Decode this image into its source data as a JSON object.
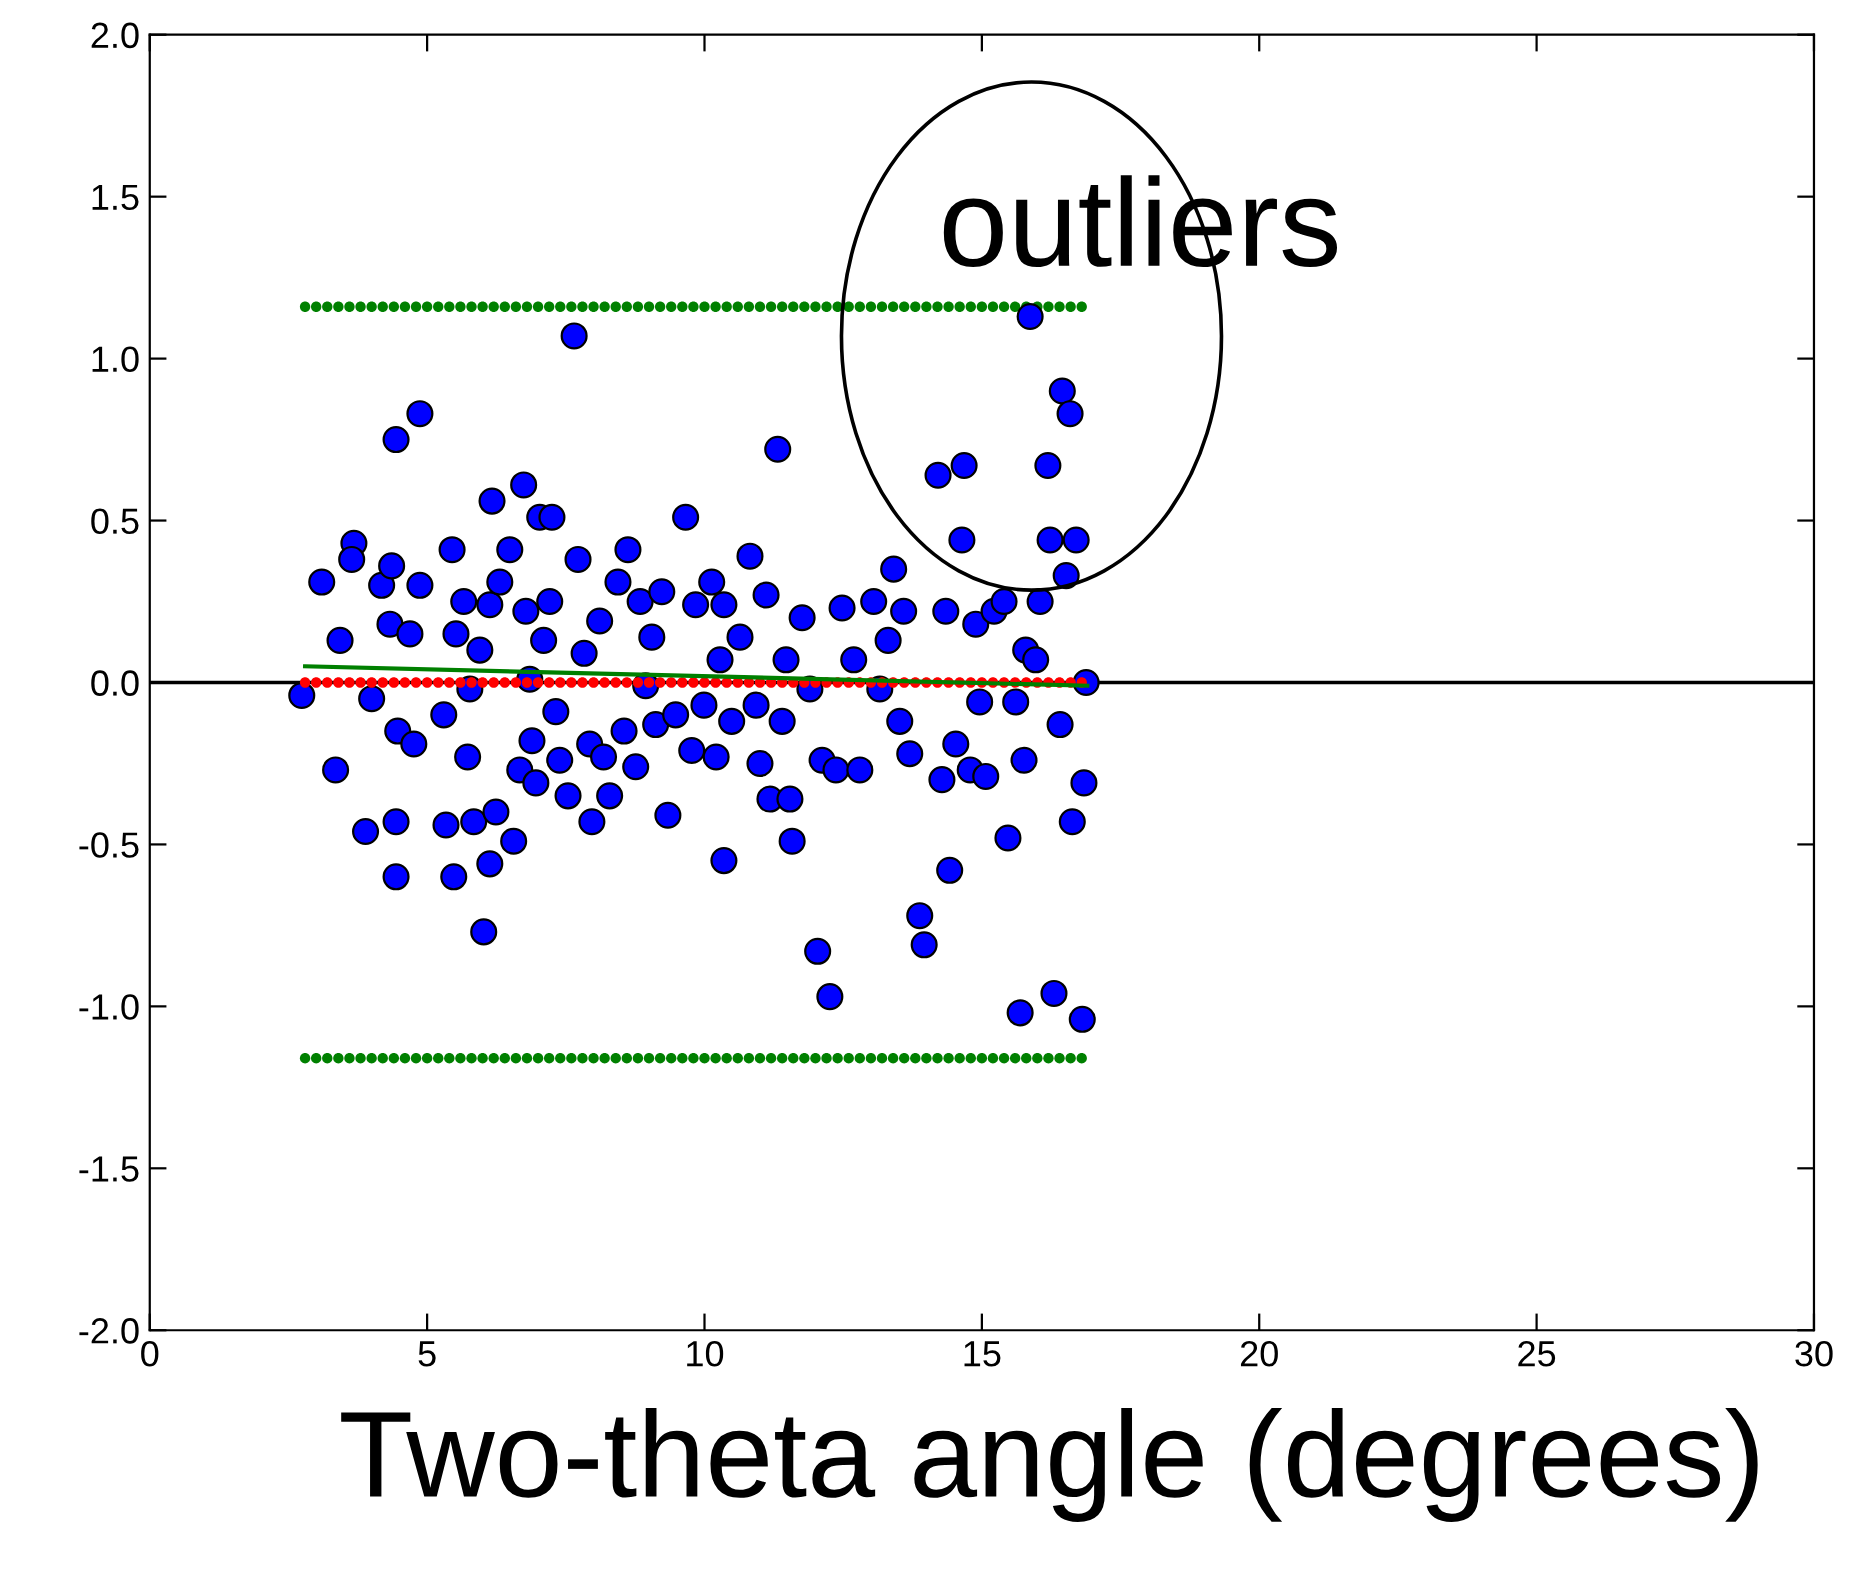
{
  "chart_data": {
    "type": "scatter",
    "xlabel": "Two-theta angle (degrees)",
    "xlim": [
      0,
      30
    ],
    "xticks": [
      0,
      5,
      10,
      15,
      20,
      25,
      30
    ],
    "ylim": [
      -2.0,
      2.0
    ],
    "yticks": [
      {
        "value": -2.0,
        "label": "-2.0"
      },
      {
        "value": -1.5,
        "label": "-1.5"
      },
      {
        "value": -1.0,
        "label": "-1.0"
      },
      {
        "value": -0.5,
        "label": "-0.5"
      },
      {
        "value": 0.0,
        "label": "0.0"
      },
      {
        "value": 0.5,
        "label": "0.5"
      },
      {
        "value": 1.0,
        "label": "1.0"
      },
      {
        "value": 1.5,
        "label": "1.5"
      },
      {
        "value": 2.0,
        "label": "2.0"
      }
    ],
    "grid": false,
    "legend": false,
    "marker": "circle",
    "ref_lines": [
      {
        "axis": "y",
        "value": 0,
        "color": "#000000"
      }
    ],
    "annotations": [
      "outliers"
    ],
    "series": [
      {
        "type": "scatter",
        "color": "#008000",
        "x": [
          2.8,
          3.0,
          3.2,
          3.4,
          3.6,
          3.8,
          4.0,
          4.2,
          4.4,
          4.6,
          4.8,
          5.0,
          5.2,
          5.4,
          5.6,
          5.8,
          6.0,
          6.2,
          6.4,
          6.6,
          6.8,
          7.0,
          7.2,
          7.4,
          7.6,
          7.8,
          8.0,
          8.2,
          8.4,
          8.6,
          8.8,
          9.0,
          9.2,
          9.4,
          9.6,
          9.8,
          10.0,
          10.2,
          10.4,
          10.6,
          10.8,
          11.0,
          11.2,
          11.4,
          11.6,
          11.8,
          12.0,
          12.2,
          12.4,
          12.6,
          12.8,
          13.0,
          13.2,
          13.4,
          13.6,
          13.8,
          14.0,
          14.2,
          14.4,
          14.6,
          14.8,
          15.0,
          15.2,
          15.4,
          15.6,
          15.8,
          16.0,
          16.2,
          16.4,
          16.6,
          16.8
        ],
        "values": [
          1.16,
          1.16,
          1.16,
          1.16,
          1.16,
          1.16,
          1.16,
          1.16,
          1.16,
          1.16,
          1.16,
          1.16,
          1.16,
          1.16,
          1.16,
          1.16,
          1.16,
          1.16,
          1.16,
          1.16,
          1.16,
          1.16,
          1.16,
          1.16,
          1.16,
          1.16,
          1.16,
          1.16,
          1.16,
          1.16,
          1.16,
          1.16,
          1.16,
          1.16,
          1.16,
          1.16,
          1.16,
          1.16,
          1.16,
          1.16,
          1.16,
          1.16,
          1.16,
          1.16,
          1.16,
          1.16,
          1.16,
          1.16,
          1.16,
          1.16,
          1.16,
          1.16,
          1.16,
          1.16,
          1.16,
          1.16,
          1.16,
          1.16,
          1.16,
          1.16,
          1.16,
          1.16,
          1.16,
          1.16,
          1.16,
          1.16,
          1.16,
          1.16,
          1.16,
          1.16,
          1.16
        ]
      },
      {
        "type": "scatter",
        "color": "#008000",
        "x": [
          2.8,
          3.0,
          3.2,
          3.4,
          3.6,
          3.8,
          4.0,
          4.2,
          4.4,
          4.6,
          4.8,
          5.0,
          5.2,
          5.4,
          5.6,
          5.8,
          6.0,
          6.2,
          6.4,
          6.6,
          6.8,
          7.0,
          7.2,
          7.4,
          7.6,
          7.8,
          8.0,
          8.2,
          8.4,
          8.6,
          8.8,
          9.0,
          9.2,
          9.4,
          9.6,
          9.8,
          10.0,
          10.2,
          10.4,
          10.6,
          10.8,
          11.0,
          11.2,
          11.4,
          11.6,
          11.8,
          12.0,
          12.2,
          12.4,
          12.6,
          12.8,
          13.0,
          13.2,
          13.4,
          13.6,
          13.8,
          14.0,
          14.2,
          14.4,
          14.6,
          14.8,
          15.0,
          15.2,
          15.4,
          15.6,
          15.8,
          16.0,
          16.2,
          16.4,
          16.6,
          16.8
        ],
        "values": [
          -1.16,
          -1.16,
          -1.16,
          -1.16,
          -1.16,
          -1.16,
          -1.16,
          -1.16,
          -1.16,
          -1.16,
          -1.16,
          -1.16,
          -1.16,
          -1.16,
          -1.16,
          -1.16,
          -1.16,
          -1.16,
          -1.16,
          -1.16,
          -1.16,
          -1.16,
          -1.16,
          -1.16,
          -1.16,
          -1.16,
          -1.16,
          -1.16,
          -1.16,
          -1.16,
          -1.16,
          -1.16,
          -1.16,
          -1.16,
          -1.16,
          -1.16,
          -1.16,
          -1.16,
          -1.16,
          -1.16,
          -1.16,
          -1.16,
          -1.16,
          -1.16,
          -1.16,
          -1.16,
          -1.16,
          -1.16,
          -1.16,
          -1.16,
          -1.16,
          -1.16,
          -1.16,
          -1.16,
          -1.16,
          -1.16,
          -1.16,
          -1.16,
          -1.16,
          -1.16,
          -1.16,
          -1.16,
          -1.16,
          -1.16,
          -1.16,
          -1.16,
          -1.16,
          -1.16,
          -1.16,
          -1.16,
          -1.16
        ]
      },
      {
        "color": "#0000ff",
        "x": [
          2.74,
          3.1,
          3.35,
          3.43,
          3.68,
          3.64,
          3.89,
          4.0,
          4.18,
          4.36,
          4.44,
          4.44,
          4.44,
          4.33,
          4.47,
          4.69,
          4.76,
          4.87,
          4.87,
          5.3,
          5.34,
          5.45,
          5.48,
          5.52,
          5.66,
          5.73,
          5.77,
          5.84,
          5.95,
          6.02,
          6.17,
          6.13,
          6.13,
          6.24,
          6.31,
          6.49,
          6.56,
          6.67,
          6.74,
          6.78,
          6.85,
          6.89,
          6.96,
          7.03,
          7.1,
          7.21,
          7.25,
          7.32,
          7.39,
          7.54,
          7.65,
          7.72,
          7.83,
          7.93,
          7.97,
          8.11,
          8.18,
          8.29,
          8.44,
          8.55,
          8.62,
          8.76,
          8.84,
          8.94,
          9.05,
          9.12,
          9.23,
          9.34,
          9.48,
          9.66,
          9.77,
          9.84,
          9.99,
          10.13,
          10.21,
          10.28,
          10.35,
          10.35,
          10.49,
          10.64,
          10.82,
          10.93,
          11.0,
          11.11,
          11.18,
          11.32,
          11.4,
          11.47,
          11.54,
          11.58,
          11.76,
          11.9,
          12.04,
          12.12,
          12.26,
          12.37,
          12.48,
          12.69,
          12.8,
          13.05,
          13.16,
          13.31,
          13.41,
          13.52,
          13.59,
          13.7,
          13.88,
          13.96,
          14.21,
          14.28,
          14.35,
          14.42,
          14.53,
          14.64,
          14.68,
          14.79,
          14.89,
          14.96,
          15.07,
          15.22,
          15.4,
          15.47,
          15.61,
          15.69,
          15.76,
          15.79,
          15.87,
          15.97,
          16.05,
          16.19,
          16.23,
          16.3,
          16.41,
          16.45,
          16.52,
          16.59,
          16.63,
          16.7,
          16.81,
          16.84,
          16.88
        ],
        "values": [
          -0.04,
          0.31,
          -0.27,
          0.13,
          0.43,
          0.38,
          -0.46,
          -0.05,
          0.3,
          0.36,
          0.75,
          -0.6,
          -0.43,
          0.18,
          -0.15,
          0.15,
          -0.19,
          0.83,
          0.3,
          -0.1,
          -0.44,
          0.41,
          -0.6,
          0.15,
          0.25,
          -0.23,
          -0.02,
          -0.43,
          0.1,
          -0.77,
          0.56,
          -0.56,
          0.24,
          -0.4,
          0.31,
          0.41,
          -0.49,
          -0.27,
          0.61,
          0.22,
          0.01,
          -0.18,
          -0.31,
          0.51,
          0.13,
          0.25,
          0.51,
          -0.09,
          -0.24,
          -0.35,
          1.07,
          0.38,
          0.09,
          -0.19,
          -0.43,
          0.19,
          -0.23,
          -0.35,
          0.31,
          -0.15,
          0.41,
          -0.26,
          0.25,
          -0.01,
          0.14,
          -0.13,
          0.28,
          -0.41,
          -0.1,
          0.51,
          -0.21,
          0.24,
          -0.07,
          0.31,
          -0.23,
          0.07,
          0.24,
          -0.55,
          -0.12,
          0.14,
          0.39,
          -0.07,
          -0.25,
          0.27,
          -0.36,
          0.72,
          -0.12,
          0.07,
          -0.36,
          -0.49,
          0.2,
          -0.02,
          -0.83,
          -0.24,
          -0.97,
          -0.27,
          0.23,
          0.07,
          -0.27,
          0.25,
          -0.02,
          0.13,
          0.35,
          -0.12,
          0.22,
          -0.22,
          -0.72,
          -0.81,
          0.64,
          -0.3,
          0.22,
          -0.58,
          -0.19,
          0.44,
          0.67,
          -0.27,
          0.18,
          -0.06,
          -0.29,
          0.22,
          0.25,
          -0.48,
          -0.06,
          -1.02,
          -0.24,
          0.1,
          1.13,
          0.07,
          0.25,
          0.67,
          0.44,
          -0.96,
          -0.13,
          0.9,
          0.33,
          0.83,
          -0.43,
          0.44,
          -1.04,
          -0.31,
          0.0
        ]
      },
      {
        "color": "#ff0000",
        "x": [
          2.8,
          3.0,
          3.2,
          3.4,
          3.6,
          3.8,
          4.0,
          4.2,
          4.4,
          4.6,
          4.8,
          5.0,
          5.2,
          5.4,
          5.6,
          5.8,
          6.0,
          6.2,
          6.4,
          6.6,
          6.8,
          7.0,
          7.2,
          7.4,
          7.6,
          7.8,
          8.0,
          8.2,
          8.4,
          8.6,
          8.8,
          9.0,
          9.2,
          9.4,
          9.6,
          9.8,
          10.0,
          10.2,
          10.4,
          10.6,
          10.8,
          11.0,
          11.2,
          11.4,
          11.6,
          11.8,
          12.0,
          12.2,
          12.4,
          12.6,
          12.8,
          13.0,
          13.2,
          13.4,
          13.6,
          13.8,
          14.0,
          14.2,
          14.4,
          14.6,
          14.8,
          15.0,
          15.2,
          15.4,
          15.6,
          15.8,
          16.0,
          16.2,
          16.4,
          16.6,
          16.8
        ],
        "values": [
          0,
          0,
          0,
          0,
          0,
          0,
          0,
          0,
          0,
          0,
          0,
          0,
          0,
          0,
          0,
          0,
          0,
          0,
          0,
          0,
          0,
          0,
          0,
          0,
          0,
          0,
          0,
          0,
          0,
          0,
          0,
          0,
          0,
          0,
          0,
          0,
          0,
          0,
          0,
          0,
          0,
          0,
          0,
          0,
          0,
          0,
          0,
          0,
          0,
          0,
          0,
          0,
          0,
          0,
          0,
          0,
          0,
          0,
          0,
          0,
          0,
          0,
          0,
          0,
          0,
          0,
          0,
          0,
          0,
          0,
          0
        ]
      },
      {
        "type": "line",
        "marker": "none",
        "color": "#008000",
        "x": [
          2.8,
          16.9
        ],
        "values": [
          0.05,
          -0.01
        ]
      }
    ]
  }
}
